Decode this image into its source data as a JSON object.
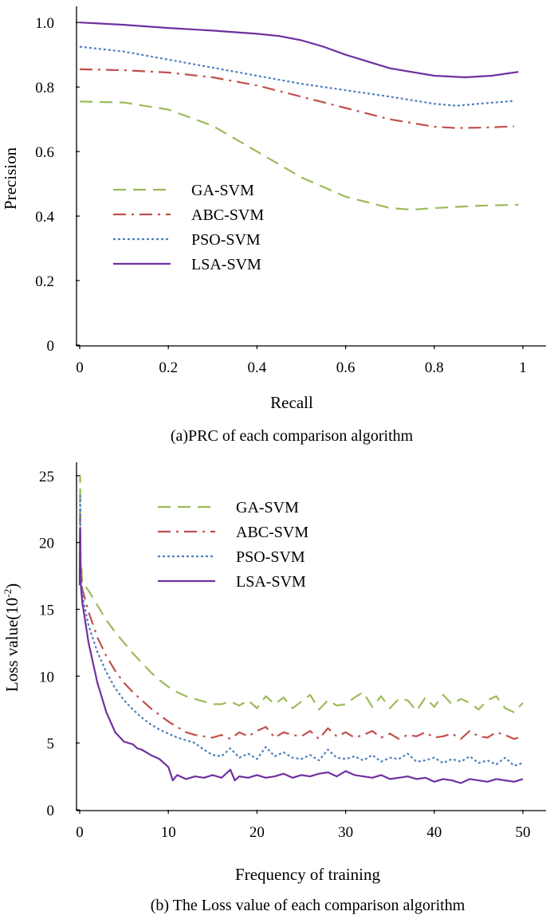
{
  "chart_data": [
    {
      "type": "line",
      "caption": "(a)PRC of each comparison algorithm",
      "xlabel": "Recall",
      "ylabel": "Precision",
      "xlim": [
        0,
        1
      ],
      "ylim": [
        0,
        1.05
      ],
      "xticks": [
        "0",
        "0.2",
        "0.4",
        "0.6",
        "0.8",
        "1"
      ],
      "yticks": [
        "0",
        "0.2",
        "0.4",
        "0.6",
        "0.8",
        "1.0"
      ],
      "legend_position": "center-left",
      "series": [
        {
          "name": "GA-SVM",
          "color": "#9bbb59",
          "dash": "dashed",
          "x": [
            0,
            0.1,
            0.2,
            0.3,
            0.4,
            0.5,
            0.6,
            0.7,
            0.75,
            0.8,
            0.9,
            0.99
          ],
          "y": [
            0.755,
            0.752,
            0.73,
            0.68,
            0.6,
            0.52,
            0.46,
            0.425,
            0.42,
            0.425,
            0.432,
            0.435
          ]
        },
        {
          "name": "ABC-SVM",
          "color": "#c0504d",
          "dash": "dashdot",
          "x": [
            0,
            0.1,
            0.2,
            0.3,
            0.4,
            0.5,
            0.6,
            0.7,
            0.8,
            0.85,
            0.9,
            0.98
          ],
          "y": [
            0.855,
            0.852,
            0.845,
            0.83,
            0.805,
            0.77,
            0.735,
            0.7,
            0.677,
            0.673,
            0.674,
            0.678
          ]
        },
        {
          "name": "PSO-SVM",
          "color": "#4f81bd",
          "dash": "dotted",
          "x": [
            0,
            0.1,
            0.2,
            0.3,
            0.4,
            0.5,
            0.6,
            0.7,
            0.8,
            0.85,
            0.9,
            0.98
          ],
          "y": [
            0.925,
            0.91,
            0.885,
            0.86,
            0.835,
            0.81,
            0.79,
            0.77,
            0.748,
            0.742,
            0.748,
            0.757
          ]
        },
        {
          "name": "LSA-SVM",
          "color": "#7030a0",
          "dash": "solid",
          "x": [
            0,
            0.1,
            0.2,
            0.3,
            0.4,
            0.45,
            0.5,
            0.55,
            0.6,
            0.7,
            0.8,
            0.87,
            0.93,
            0.99
          ],
          "y": [
            1.0,
            0.993,
            0.983,
            0.975,
            0.965,
            0.958,
            0.945,
            0.925,
            0.9,
            0.858,
            0.835,
            0.83,
            0.835,
            0.847
          ]
        }
      ]
    },
    {
      "type": "line",
      "caption": "(b) The Loss value of each comparison algorithm",
      "xlabel": "Frequency of training",
      "ylabel": "Loss value(10",
      "ylabel_sup": "-2",
      "ylabel_suffix": ")",
      "xlim": [
        0,
        50
      ],
      "ylim": [
        0,
        26
      ],
      "xticks": [
        "0",
        "10",
        "20",
        "30",
        "40",
        "50"
      ],
      "yticks": [
        "0",
        "5",
        "10",
        "15",
        "20",
        "25"
      ],
      "legend_position": "top-center",
      "series": [
        {
          "name": "GA-SVM",
          "color": "#9bbb59",
          "dash": "dashed",
          "x": [
            0,
            0.05,
            0.1,
            0.3,
            1,
            2,
            3,
            4,
            5,
            6,
            7,
            8,
            9,
            10,
            11,
            12,
            13,
            14,
            15,
            16,
            17,
            18,
            19,
            20,
            21,
            22,
            23,
            24,
            25,
            26,
            27,
            28,
            29,
            30,
            31,
            32,
            33,
            34,
            35,
            36,
            37,
            38,
            39,
            40,
            41,
            42,
            43,
            44,
            45,
            46,
            47,
            48,
            49,
            50
          ],
          "y": [
            18.5,
            25,
            19,
            17,
            16.4,
            15.3,
            14.2,
            13.3,
            12.5,
            11.7,
            11,
            10.3,
            9.7,
            9.2,
            8.8,
            8.5,
            8.3,
            8.1,
            7.9,
            7.9,
            8.1,
            7.8,
            8.2,
            7.6,
            8.5,
            7.9,
            8.4,
            7.6,
            8.1,
            8.6,
            7.5,
            8.2,
            7.8,
            7.9,
            8.4,
            8.8,
            7.7,
            8.5,
            7.6,
            8.3,
            8.2,
            7.4,
            8.4,
            7.7,
            8.6,
            7.9,
            8.3,
            8.0,
            7.5,
            8.2,
            8.5,
            7.6,
            7.3,
            8.0
          ]
        },
        {
          "name": "ABC-SVM",
          "color": "#c0504d",
          "dash": "dashdot",
          "x": [
            0,
            0.05,
            0.1,
            0.3,
            1,
            2,
            3,
            4,
            5,
            6,
            7,
            8,
            9,
            10,
            11,
            12,
            13,
            14,
            15,
            16,
            17,
            18,
            19,
            20,
            21,
            22,
            23,
            24,
            25,
            26,
            27,
            28,
            29,
            30,
            31,
            32,
            33,
            34,
            35,
            36,
            37,
            38,
            39,
            40,
            41,
            42,
            43,
            44,
            45,
            46,
            47,
            48,
            49,
            50
          ],
          "y": [
            17.5,
            22,
            18.5,
            16.5,
            14.8,
            12.9,
            11.5,
            10.4,
            9.5,
            8.8,
            8.2,
            7.6,
            7.1,
            6.6,
            6.2,
            5.8,
            5.6,
            5.5,
            5.4,
            5.6,
            5.3,
            5.8,
            5.5,
            5.9,
            6.2,
            5.4,
            5.8,
            5.6,
            5.5,
            5.9,
            5.3,
            6.1,
            5.5,
            5.8,
            5.4,
            5.6,
            5.9,
            5.4,
            5.7,
            5.3,
            5.6,
            5.5,
            5.8,
            5.4,
            5.5,
            5.7,
            5.3,
            5.9,
            5.5,
            5.4,
            5.8,
            5.6,
            5.3,
            5.5
          ]
        },
        {
          "name": "PSO-SVM",
          "color": "#4f81bd",
          "dash": "dotted",
          "x": [
            0,
            0.05,
            0.1,
            0.3,
            1,
            2,
            3,
            4,
            5,
            6,
            7,
            8,
            9,
            10,
            11,
            12,
            13,
            14,
            15,
            16,
            17,
            18,
            19,
            20,
            21,
            22,
            23,
            24,
            25,
            26,
            27,
            28,
            29,
            30,
            31,
            32,
            33,
            34,
            35,
            36,
            37,
            38,
            39,
            40,
            41,
            42,
            43,
            44,
            45,
            46,
            47,
            48,
            49,
            50
          ],
          "y": [
            17,
            23.5,
            18,
            16,
            13.8,
            11.8,
            10.3,
            9.1,
            8.2,
            7.5,
            6.9,
            6.4,
            6.0,
            5.7,
            5.4,
            5.2,
            5.0,
            4.5,
            4.1,
            4.0,
            4.6,
            3.9,
            4.2,
            3.8,
            4.7,
            4.0,
            4.3,
            3.9,
            3.8,
            4.1,
            3.7,
            4.5,
            3.9,
            3.8,
            4.0,
            3.7,
            4.1,
            3.6,
            3.9,
            3.8,
            4.2,
            3.6,
            3.7,
            3.9,
            3.5,
            3.8,
            3.6,
            4.0,
            3.5,
            3.7,
            3.4,
            3.9,
            3.3,
            3.5
          ]
        },
        {
          "name": "LSA-SVM",
          "color": "#7030a0",
          "dash": "solid",
          "x": [
            0,
            0.05,
            0.1,
            0.3,
            1,
            2,
            3,
            4,
            5,
            6,
            6.5,
            7,
            8,
            9,
            10,
            10.5,
            11,
            12,
            13,
            14,
            15,
            16,
            17,
            17.5,
            18,
            19,
            20,
            21,
            22,
            23,
            24,
            25,
            26,
            27,
            28,
            29,
            30,
            31,
            32,
            33,
            34,
            35,
            36,
            37,
            38,
            39,
            40,
            41,
            42,
            43,
            44,
            45,
            46,
            47,
            48,
            49,
            50
          ],
          "y": [
            16.8,
            21,
            17,
            15.5,
            12.5,
            9.5,
            7.3,
            5.8,
            5.1,
            4.9,
            4.6,
            4.5,
            4.1,
            3.8,
            3.2,
            2.2,
            2.6,
            2.3,
            2.5,
            2.4,
            2.6,
            2.4,
            3.0,
            2.2,
            2.5,
            2.4,
            2.6,
            2.4,
            2.5,
            2.7,
            2.4,
            2.6,
            2.5,
            2.7,
            2.8,
            2.5,
            2.9,
            2.6,
            2.5,
            2.4,
            2.6,
            2.3,
            2.4,
            2.5,
            2.3,
            2.4,
            2.1,
            2.3,
            2.2,
            2.0,
            2.3,
            2.2,
            2.1,
            2.3,
            2.2,
            2.1,
            2.3
          ]
        }
      ]
    }
  ]
}
